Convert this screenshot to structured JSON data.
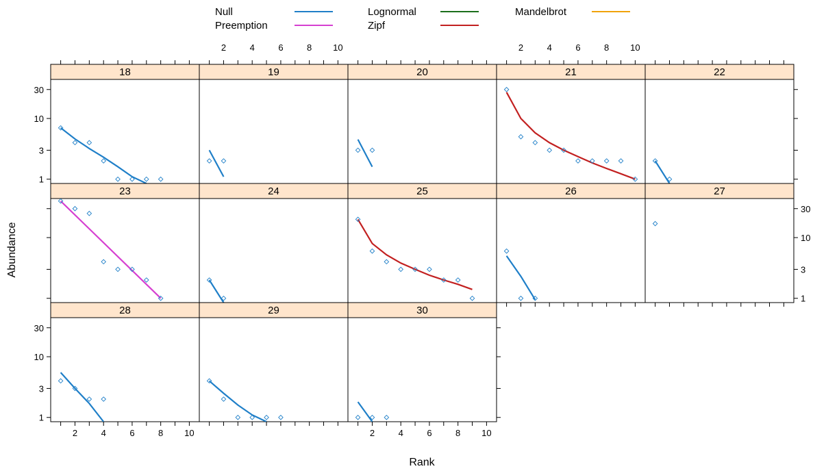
{
  "chart_data": {
    "type": "scatter",
    "xlabel": "Rank",
    "ylabel": "Abundance",
    "x_ticks": [
      2,
      4,
      6,
      8,
      10
    ],
    "y_ticks": [
      {
        "value": 1,
        "label": "1"
      },
      {
        "value": 3,
        "label": "3"
      },
      {
        "value": 10,
        "label": "10"
      },
      {
        "value": 30,
        "label": "30"
      }
    ],
    "xlim": [
      0.3,
      10.7
    ],
    "ylim": [
      0.85,
      44
    ],
    "y_scale": "log",
    "legend": {
      "placement": "top",
      "entries": [
        {
          "name": "Null",
          "color": "#1f7fc8"
        },
        {
          "name": "Preemption",
          "color": "#d63fd1"
        },
        {
          "name": "Lognormal",
          "color": "#1a6e1a"
        },
        {
          "name": "Zipf",
          "color": "#c22020"
        },
        {
          "name": "Mandelbrot",
          "color": "#f0a30a"
        }
      ]
    },
    "point_color": "#1f7fc8",
    "panels": [
      {
        "label": "18",
        "points": [
          [
            1,
            7
          ],
          [
            2,
            4
          ],
          [
            3,
            4
          ],
          [
            4,
            2
          ],
          [
            5,
            1
          ],
          [
            6,
            1
          ],
          [
            7,
            1
          ],
          [
            8,
            1
          ]
        ],
        "fit": {
          "model": "Null",
          "x": [
            1,
            2,
            3,
            4,
            5,
            6,
            7
          ],
          "y": [
            7,
            4.6,
            3.2,
            2.3,
            1.6,
            1.1,
            0.85
          ]
        }
      },
      {
        "label": "19",
        "points": [
          [
            1,
            2
          ],
          [
            2,
            2
          ]
        ],
        "fit": {
          "model": "Null",
          "x": [
            1,
            2
          ],
          "y": [
            3,
            1.1
          ]
        }
      },
      {
        "label": "20",
        "points": [
          [
            1,
            3
          ],
          [
            2,
            3
          ]
        ],
        "fit": {
          "model": "Null",
          "x": [
            1,
            2
          ],
          "y": [
            4.5,
            1.6
          ]
        }
      },
      {
        "label": "21",
        "points": [
          [
            1,
            30
          ],
          [
            2,
            5
          ],
          [
            3,
            4
          ],
          [
            4,
            3
          ],
          [
            5,
            3
          ],
          [
            6,
            2
          ],
          [
            7,
            2
          ],
          [
            8,
            2
          ],
          [
            9,
            2
          ],
          [
            10,
            1
          ]
        ],
        "fit": {
          "model": "Zipf",
          "x": [
            1,
            2,
            3,
            4,
            5,
            6,
            7,
            8,
            9,
            10
          ],
          "y": [
            27,
            10,
            5.8,
            4,
            3,
            2.35,
            1.85,
            1.5,
            1.23,
            1
          ]
        }
      },
      {
        "label": "22",
        "points": [
          [
            1,
            2
          ],
          [
            2,
            1
          ]
        ],
        "fit": {
          "model": "Null",
          "x": [
            1,
            2
          ],
          "y": [
            2,
            0.85
          ]
        }
      },
      {
        "label": "23",
        "points": [
          [
            1,
            40
          ],
          [
            2,
            30
          ],
          [
            3,
            25
          ],
          [
            4,
            4
          ],
          [
            5,
            3
          ],
          [
            6,
            3
          ],
          [
            7,
            2
          ],
          [
            8,
            1
          ]
        ],
        "fit": {
          "model": "Preemption",
          "x": [
            1,
            8
          ],
          "y": [
            40,
            1
          ]
        }
      },
      {
        "label": "24",
        "points": [
          [
            1,
            2
          ],
          [
            2,
            1
          ]
        ],
        "fit": {
          "model": "Null",
          "x": [
            1,
            2
          ],
          "y": [
            2,
            0.85
          ]
        }
      },
      {
        "label": "25",
        "points": [
          [
            1,
            20
          ],
          [
            2,
            6
          ],
          [
            3,
            4
          ],
          [
            4,
            3
          ],
          [
            5,
            3
          ],
          [
            6,
            3
          ],
          [
            7,
            2
          ],
          [
            8,
            2
          ],
          [
            9,
            1
          ]
        ],
        "fit": {
          "model": "Zipf",
          "x": [
            1,
            2,
            3,
            4,
            5,
            6,
            7,
            8,
            9
          ],
          "y": [
            20,
            8,
            5.2,
            3.8,
            3,
            2.4,
            2,
            1.7,
            1.4
          ]
        }
      },
      {
        "label": "26",
        "points": [
          [
            1,
            6
          ],
          [
            2,
            1
          ],
          [
            3,
            1
          ]
        ],
        "fit": {
          "model": "Null",
          "x": [
            1,
            2,
            3
          ],
          "y": [
            5,
            2.3,
            0.95
          ]
        }
      },
      {
        "label": "27",
        "points": [
          [
            1,
            17
          ]
        ],
        "fit": null
      },
      {
        "label": "28",
        "points": [
          [
            1,
            4
          ],
          [
            2,
            3
          ],
          [
            3,
            2
          ],
          [
            4,
            2
          ]
        ],
        "fit": {
          "model": "Null",
          "x": [
            1,
            2,
            3,
            4
          ],
          "y": [
            5.5,
            3,
            1.7,
            0.85
          ]
        }
      },
      {
        "label": "29",
        "points": [
          [
            1,
            4
          ],
          [
            2,
            2
          ],
          [
            3,
            1
          ],
          [
            4,
            1
          ],
          [
            5,
            1
          ],
          [
            6,
            1
          ]
        ],
        "fit": {
          "model": "Null",
          "x": [
            1,
            2,
            3,
            4,
            5
          ],
          "y": [
            4,
            2.5,
            1.6,
            1.1,
            0.85
          ]
        }
      },
      {
        "label": "30",
        "points": [
          [
            1,
            1
          ],
          [
            2,
            1
          ],
          [
            3,
            1
          ]
        ],
        "fit": {
          "model": "Null",
          "x": [
            1,
            2
          ],
          "y": [
            1.8,
            0.85
          ]
        }
      }
    ]
  }
}
